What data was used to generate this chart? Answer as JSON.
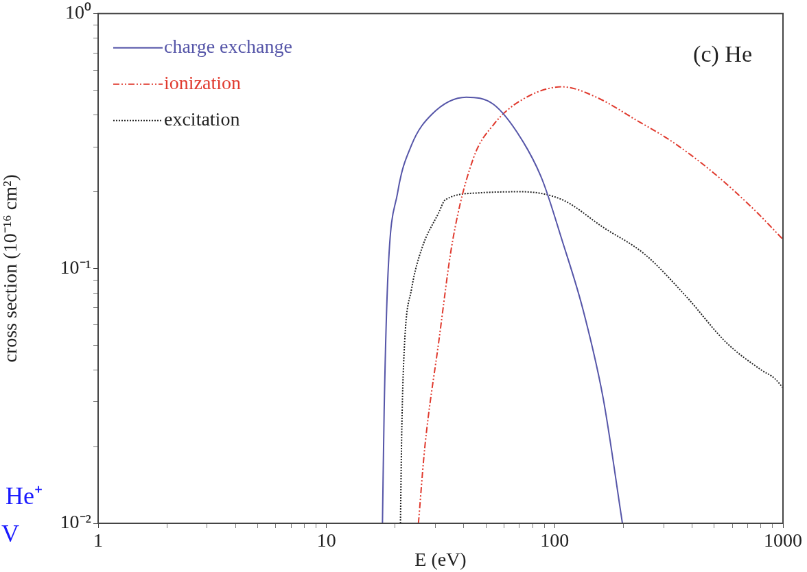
{
  "chart_data": {
    "type": "line",
    "xlabel": "E (eV)",
    "ylabel": "cross section (10⁻¹⁶ cm²)",
    "log": "xy",
    "grid": false,
    "legend": "top left",
    "marker": "none",
    "annotations": [
      "(c) He",
      "He⁺",
      "V"
    ],
    "xlim": [
      1,
      1000
    ],
    "ylim": [
      0.01,
      1
    ],
    "xticks": [
      1,
      {
        "value": 2,
        "label": null
      },
      {
        "value": 3,
        "label": null
      },
      {
        "value": 4,
        "label": null
      },
      {
        "value": 5,
        "label": null
      },
      {
        "value": 6,
        "label": null
      },
      {
        "value": 7,
        "label": null
      },
      {
        "value": 8,
        "label": null
      },
      {
        "value": 9,
        "label": null
      },
      10,
      {
        "value": 20,
        "label": null
      },
      {
        "value": 30,
        "label": null
      },
      {
        "value": 40,
        "label": null
      },
      {
        "value": 50,
        "label": null
      },
      {
        "value": 60,
        "label": null
      },
      {
        "value": 70,
        "label": null
      },
      {
        "value": 80,
        "label": null
      },
      {
        "value": 90,
        "label": null
      },
      100,
      {
        "value": 200,
        "label": null
      },
      {
        "value": 300,
        "label": null
      },
      {
        "value": 400,
        "label": null
      },
      {
        "value": 500,
        "label": null
      },
      {
        "value": 600,
        "label": null
      },
      {
        "value": 700,
        "label": null
      },
      {
        "value": 800,
        "label": null
      },
      {
        "value": 900,
        "label": null
      },
      1000
    ],
    "yticks": [
      {
        "value": 0.01,
        "label": "10⁻²"
      },
      {
        "value": 0.02,
        "label": null
      },
      {
        "value": 0.03,
        "label": null
      },
      {
        "value": 0.04,
        "label": null
      },
      {
        "value": 0.05,
        "label": null
      },
      {
        "value": 0.06,
        "label": null
      },
      {
        "value": 0.07,
        "label": null
      },
      {
        "value": 0.08,
        "label": null
      },
      {
        "value": 0.09,
        "label": null
      },
      {
        "value": 0.1,
        "label": "10⁻¹"
      },
      {
        "value": 0.2,
        "label": null
      },
      {
        "value": 0.3,
        "label": null
      },
      {
        "value": 0.4,
        "label": null
      },
      {
        "value": 0.5,
        "label": null
      },
      {
        "value": 0.6,
        "label": null
      },
      {
        "value": 0.7,
        "label": null
      },
      {
        "value": 0.8,
        "label": null
      },
      {
        "value": 0.9,
        "label": null
      },
      {
        "value": 1,
        "label": "10⁰"
      }
    ],
    "series": [
      {
        "name": "charge exchange",
        "color": "#5555a8",
        "line_style": "solid",
        "x": [
          17.6,
          17.9,
          18.6,
          20.5,
          23.6,
          29,
          41,
          54,
          71,
          88,
          108,
          133,
          163,
          198
        ],
        "values": [
          0.01,
          0.0274,
          0.094,
          0.198,
          0.305,
          0.403,
          0.47,
          0.44,
          0.325,
          0.224,
          0.128,
          0.069,
          0.031,
          0.01
        ]
      },
      {
        "name": "ionization",
        "color": "#e03a2e",
        "line_style": "dashed",
        "x": [
          25.3,
          27,
          31,
          35.7,
          44,
          54,
          71,
          108,
          152,
          231,
          326,
          494,
          748,
          1000
        ],
        "values": [
          0.01,
          0.02,
          0.051,
          0.128,
          0.27,
          0.367,
          0.456,
          0.516,
          0.47,
          0.379,
          0.315,
          0.238,
          0.17,
          0.13
        ]
      },
      {
        "name": "excitation",
        "color": "#222222",
        "line_style": "dotted",
        "x": [
          21.1,
          21.4,
          22,
          23.6,
          26.2,
          31,
          33.2,
          47,
          71,
          108,
          163,
          247,
          375,
          567,
          802,
          920,
          1000
        ],
        "values": [
          0.01,
          0.024,
          0.051,
          0.083,
          0.12,
          0.165,
          0.186,
          0.198,
          0.2,
          0.186,
          0.145,
          0.114,
          0.078,
          0.051,
          0.04,
          0.037,
          0.034
        ]
      }
    ]
  }
}
